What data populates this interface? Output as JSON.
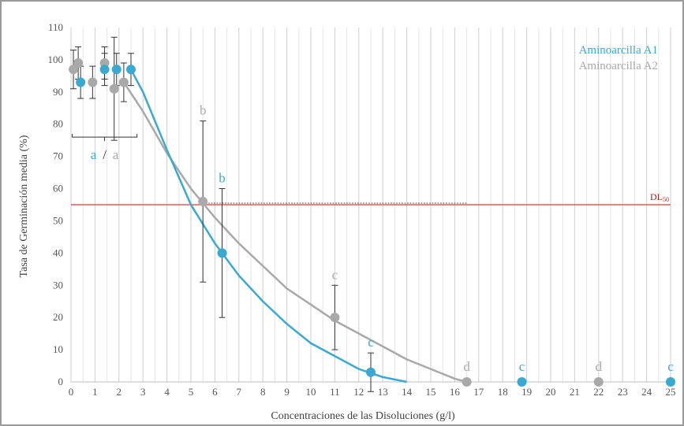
{
  "chart_data": {
    "type": "scatter",
    "ylabel": "Tasa de Germinación media (%)",
    "xlabel": "Concentraciones de las Disoluciones (g/l)",
    "xlim": [
      0,
      25
    ],
    "ylim": [
      0,
      110
    ],
    "x_ticks": [
      "0",
      "1",
      "2",
      "3",
      "4",
      "5",
      "6",
      "7",
      "8",
      "9",
      "10",
      "11",
      "12",
      "13",
      "14",
      "15",
      "16",
      "17",
      "18",
      "19",
      "20",
      "21",
      "22",
      "23",
      "24",
      "25"
    ],
    "y_ticks": [
      "0",
      "10",
      "20",
      "30",
      "40",
      "50",
      "60",
      "70",
      "80",
      "90",
      "100",
      "110"
    ],
    "grid": "vertical",
    "legend_position": "top-right",
    "series": [
      {
        "name": "Aminoarcilla A1",
        "color": "#3aa9d1",
        "x": [
          0.4,
          1.4,
          1.9,
          2.5,
          6.3,
          12.5,
          18.8,
          25
        ],
        "y": [
          93,
          97,
          97,
          97,
          40,
          3,
          0,
          0
        ],
        "err": [
          5,
          5,
          5,
          5,
          20,
          6,
          0,
          0
        ],
        "groups": [
          "a",
          null,
          null,
          null,
          "b",
          "c",
          "c",
          "c"
        ],
        "trend_x": [
          2.5,
          3,
          4,
          5,
          6,
          7,
          8,
          9,
          10,
          11,
          12,
          13,
          14
        ],
        "trend_y": [
          97,
          90,
          72,
          55,
          43,
          33,
          25,
          18,
          12,
          8,
          4,
          1.5,
          0
        ]
      },
      {
        "name": "Aminoarcilla A2",
        "color": "#a9a9a9",
        "x": [
          0.1,
          0.3,
          0.9,
          1.4,
          1.8,
          2.2,
          5.5,
          11,
          16.5,
          22
        ],
        "y": [
          97,
          99,
          93,
          99,
          91,
          93,
          56,
          20,
          0,
          0
        ],
        "err": [
          6,
          5,
          5,
          5,
          16,
          6,
          25,
          10,
          0,
          0
        ],
        "groups": [
          null,
          null,
          null,
          null,
          null,
          "a",
          "b",
          "c",
          "d",
          "d"
        ],
        "trend_x": [
          2.2,
          3,
          4,
          5,
          6,
          7,
          8,
          9,
          10,
          11,
          12,
          13,
          14,
          15,
          16,
          16.5
        ],
        "trend_y": [
          93,
          84,
          71,
          60,
          51,
          43,
          36,
          29,
          24,
          19,
          15,
          11,
          7,
          4,
          1,
          0
        ]
      }
    ],
    "reference_line": {
      "label": "DL",
      "label_subscript": "50",
      "y": 55,
      "color": "#e05a5a"
    },
    "group_annotation": {
      "left": "a",
      "separator": "/",
      "right": "a"
    }
  }
}
